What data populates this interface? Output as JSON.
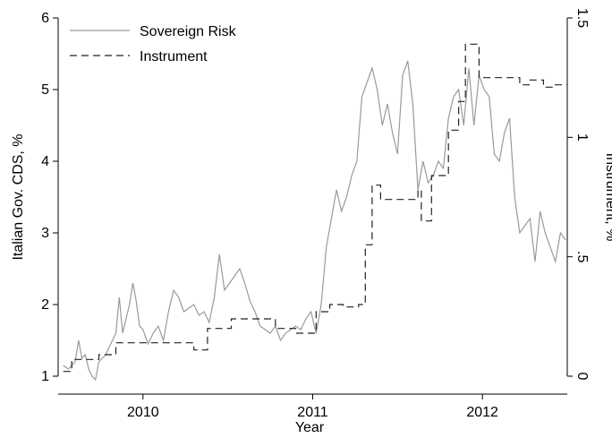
{
  "chart_data": {
    "type": "line",
    "xlabel": "Year",
    "ylabel_left": "Italian Gov. CDS, %",
    "ylabel_right": "Instrument, %",
    "xlim": [
      2009.5,
      2012.5
    ],
    "ylim_left": [
      1,
      6
    ],
    "ylim_right": [
      0,
      1.5
    ],
    "xticks": [
      {
        "value": 2010,
        "label": "2010"
      },
      {
        "value": 2011,
        "label": "2011"
      },
      {
        "value": 2012,
        "label": "2012"
      }
    ],
    "yticks_left": [
      {
        "value": 1,
        "label": "1"
      },
      {
        "value": 2,
        "label": "2"
      },
      {
        "value": 3,
        "label": "3"
      },
      {
        "value": 4,
        "label": "4"
      },
      {
        "value": 5,
        "label": "5"
      },
      {
        "value": 6,
        "label": "6"
      }
    ],
    "yticks_right": [
      {
        "value": 0,
        "label": "0"
      },
      {
        "value": 0.5,
        "label": ".5"
      },
      {
        "value": 1,
        "label": "1"
      },
      {
        "value": 1.5,
        "label": "1.5"
      }
    ],
    "legend": "top-left",
    "grid": false,
    "series": [
      {
        "name": "Sovereign Risk",
        "axis": "left",
        "color": "#9a9a9a",
        "dash": "solid",
        "x": [
          2009.53,
          2009.56,
          2009.6,
          2009.62,
          2009.64,
          2009.66,
          2009.68,
          2009.7,
          2009.72,
          2009.74,
          2009.76,
          2009.78,
          2009.8,
          2009.82,
          2009.84,
          2009.86,
          2009.88,
          2009.9,
          2009.92,
          2009.94,
          2009.96,
          2009.98,
          2010.0,
          2010.03,
          2010.06,
          2010.09,
          2010.12,
          2010.15,
          2010.18,
          2010.21,
          2010.24,
          2010.27,
          2010.3,
          2010.33,
          2010.36,
          2010.39,
          2010.42,
          2010.45,
          2010.48,
          2010.51,
          2010.54,
          2010.57,
          2010.6,
          2010.63,
          2010.66,
          2010.69,
          2010.72,
          2010.75,
          2010.78,
          2010.81,
          2010.84,
          2010.87,
          2010.9,
          2010.93,
          2010.96,
          2010.99,
          2011.02,
          2011.05,
          2011.08,
          2011.11,
          2011.14,
          2011.17,
          2011.2,
          2011.23,
          2011.26,
          2011.29,
          2011.32,
          2011.35,
          2011.38,
          2011.41,
          2011.44,
          2011.47,
          2011.5,
          2011.53,
          2011.56,
          2011.59,
          2011.62,
          2011.65,
          2011.68,
          2011.71,
          2011.74,
          2011.77,
          2011.8,
          2011.83,
          2011.86,
          2011.89,
          2011.92,
          2011.95,
          2011.98,
          2012.01,
          2012.04,
          2012.07,
          2012.1,
          2012.13,
          2012.16,
          2012.19,
          2012.22,
          2012.25,
          2012.28,
          2012.31,
          2012.34,
          2012.37,
          2012.4,
          2012.43,
          2012.46,
          2012.49
        ],
        "y": [
          1.15,
          1.1,
          1.2,
          1.5,
          1.25,
          1.3,
          1.1,
          1.0,
          0.95,
          1.2,
          1.25,
          1.3,
          1.4,
          1.5,
          1.6,
          2.1,
          1.6,
          1.8,
          2.0,
          2.3,
          2.05,
          1.7,
          1.65,
          1.45,
          1.6,
          1.7,
          1.5,
          1.9,
          2.2,
          2.1,
          1.9,
          1.95,
          2.0,
          1.85,
          1.9,
          1.75,
          2.1,
          2.7,
          2.2,
          2.3,
          2.4,
          2.5,
          2.3,
          2.05,
          1.9,
          1.7,
          1.65,
          1.6,
          1.7,
          1.5,
          1.6,
          1.65,
          1.7,
          1.65,
          1.8,
          1.9,
          1.6,
          2.0,
          2.8,
          3.2,
          3.6,
          3.3,
          3.5,
          3.8,
          4.0,
          4.9,
          5.1,
          5.3,
          5.0,
          4.5,
          4.8,
          4.4,
          4.1,
          5.2,
          5.4,
          4.8,
          3.6,
          4.0,
          3.7,
          3.8,
          4.0,
          3.9,
          4.6,
          4.9,
          5.0,
          4.5,
          5.3,
          4.5,
          5.2,
          5.0,
          4.9,
          4.1,
          4.0,
          4.4,
          4.6,
          3.5,
          3.0,
          3.1,
          3.2,
          2.6,
          3.3,
          3.0,
          2.8,
          2.6,
          3.0,
          2.9
        ]
      },
      {
        "name": "Instrument",
        "axis": "right",
        "color": "#222222",
        "dash": "8,5",
        "step": true,
        "x": [
          2009.53,
          2009.58,
          2009.74,
          2009.84,
          2010.3,
          2010.38,
          2010.52,
          2010.78,
          2010.9,
          2011.02,
          2011.1,
          2011.18,
          2011.27,
          2011.31,
          2011.35,
          2011.4,
          2011.5,
          2011.62,
          2011.64,
          2011.7,
          2011.8,
          2011.86,
          2011.9,
          2011.98,
          2012.07,
          2012.22,
          2012.28,
          2012.36,
          2012.42,
          2012.5
        ],
        "y": [
          0.02,
          0.07,
          0.09,
          0.14,
          0.11,
          0.2,
          0.24,
          0.2,
          0.18,
          0.27,
          0.3,
          0.29,
          0.3,
          0.55,
          0.8,
          0.74,
          0.74,
          0.78,
          0.65,
          0.84,
          1.03,
          1.15,
          1.39,
          1.25,
          1.25,
          1.22,
          1.24,
          1.21,
          1.22,
          1.22
        ]
      }
    ]
  }
}
